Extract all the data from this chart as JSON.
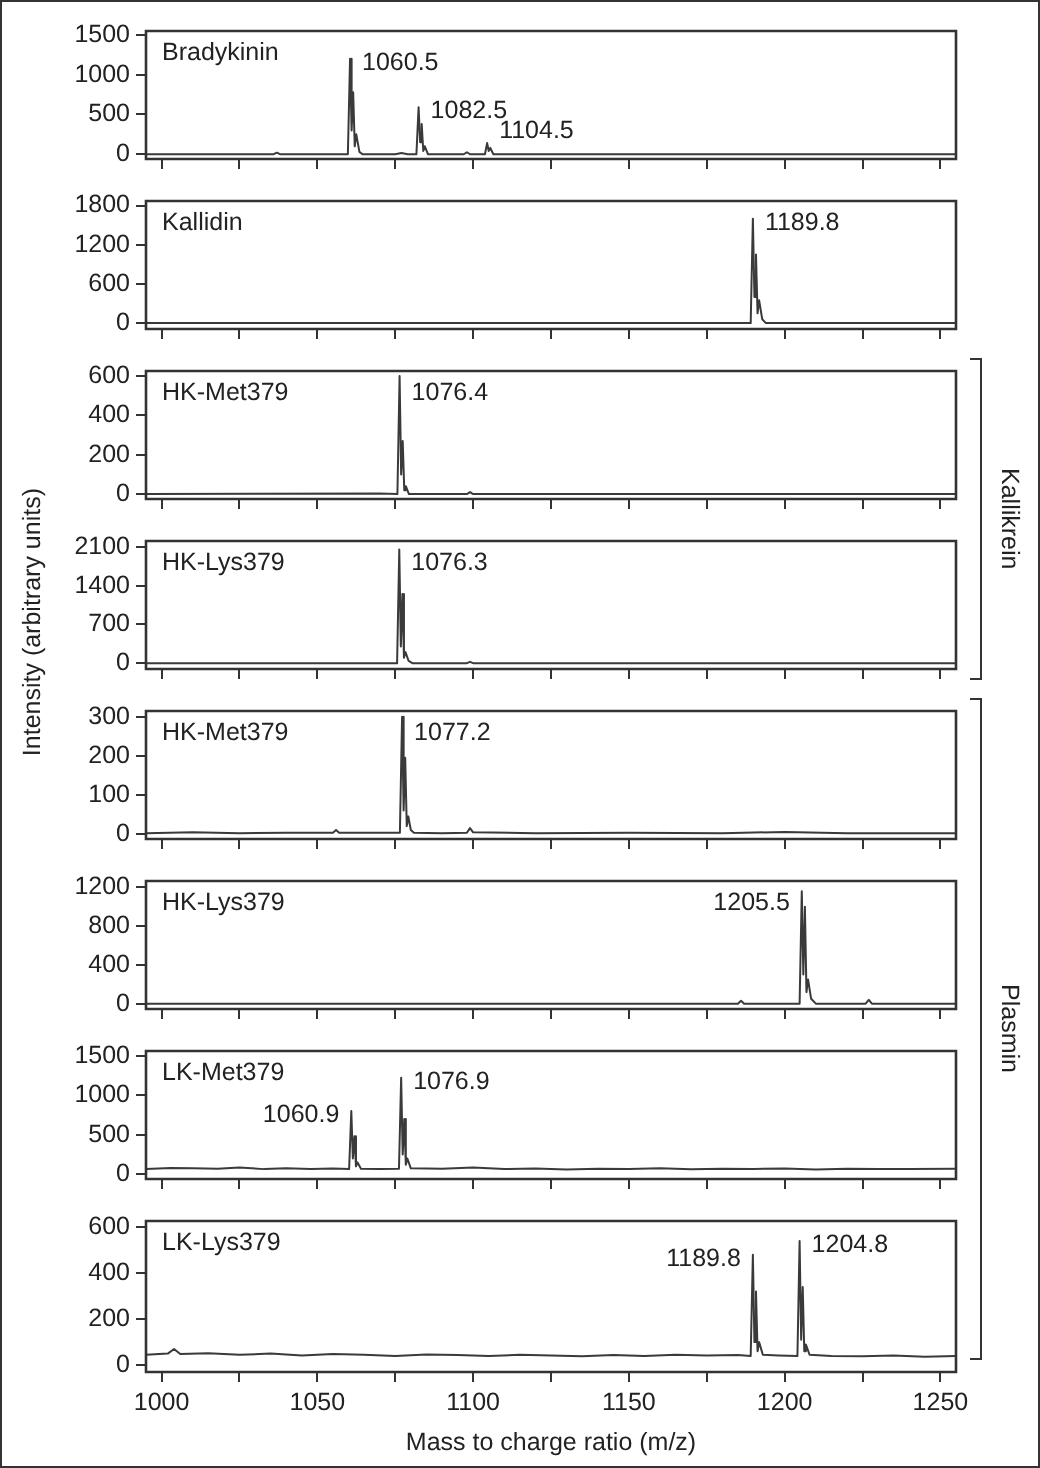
{
  "chart_data": [
    {
      "type": "line",
      "title": "Bradykinin",
      "x": [
        995,
        1020,
        1036,
        1037,
        1038,
        1059.8,
        1060.5,
        1061.0,
        1061.5,
        1062.0,
        1062.5,
        1063.5,
        1064.5,
        1075,
        1077,
        1079,
        1081.8,
        1082.5,
        1083.0,
        1083.5,
        1084.0,
        1084.5,
        1085.5,
        1097,
        1098,
        1099,
        1103.8,
        1104.5,
        1105.0,
        1105.5,
        1106.5,
        1130,
        1180,
        1255
      ],
      "values": [
        0,
        0,
        0,
        20,
        0,
        0,
        1200,
        300,
        780,
        100,
        250,
        30,
        0,
        0,
        15,
        0,
        0,
        590,
        150,
        380,
        40,
        100,
        0,
        0,
        25,
        0,
        0,
        140,
        40,
        80,
        0,
        0,
        0,
        0
      ],
      "color": "#3a3a3a",
      "xlim": [
        995,
        1255
      ],
      "xticks": [
        1000,
        {
          "value": 1025,
          "label": null
        },
        1050,
        {
          "value": 1075,
          "label": null
        },
        1100,
        {
          "value": 1125,
          "label": null
        },
        1150,
        {
          "value": 1175,
          "label": null
        },
        1200,
        {
          "value": 1225,
          "label": null
        },
        1250
      ],
      "ylim": [
        -60,
        1550
      ],
      "yticks": [
        0,
        500,
        1000,
        1500
      ],
      "tick_labels": "y",
      "annotations": [
        {
          "text": "1060.5",
          "x": 1060.5,
          "y": 1200
        },
        {
          "text": "1082.5",
          "x": 1082.5,
          "y": 590
        },
        {
          "text": "1104.5",
          "x": 1104.5,
          "y": 140
        }
      ]
    },
    {
      "type": "line",
      "title": "Kallidin",
      "x": [
        995,
        1100,
        1189.1,
        1189.8,
        1190.3,
        1190.8,
        1191.3,
        1191.8,
        1192.8,
        1194,
        1255
      ],
      "values": [
        0,
        0,
        0,
        1600,
        400,
        1050,
        150,
        350,
        60,
        0,
        0
      ],
      "color": "#3a3a3a",
      "xlim": [
        995,
        1255
      ],
      "xticks": [
        1000,
        {
          "value": 1025,
          "label": null
        },
        1050,
        {
          "value": 1075,
          "label": null
        },
        1100,
        {
          "value": 1125,
          "label": null
        },
        1150,
        {
          "value": 1175,
          "label": null
        },
        1200,
        {
          "value": 1225,
          "label": null
        },
        1250
      ],
      "ylim": [
        -90,
        1870
      ],
      "yticks": [
        0,
        600,
        1200,
        1800
      ],
      "tick_labels": "y",
      "annotations": [
        {
          "text": "1189.8",
          "x": 1189.8,
          "y": 1600
        }
      ]
    },
    {
      "type": "line",
      "title": "HK-Met379",
      "x": [
        995,
        1070,
        1075.7,
        1076.4,
        1076.9,
        1077.4,
        1077.9,
        1078.4,
        1079.4,
        1098,
        1099,
        1100,
        1255
      ],
      "values": [
        0,
        3,
        0,
        600,
        100,
        270,
        20,
        40,
        0,
        0,
        10,
        0,
        0
      ],
      "color": "#3a3a3a",
      "xlim": [
        995,
        1255
      ],
      "xticks": [
        1000,
        {
          "value": 1025,
          "label": null
        },
        1050,
        {
          "value": 1075,
          "label": null
        },
        1100,
        {
          "value": 1125,
          "label": null
        },
        1150,
        {
          "value": 1175,
          "label": null
        },
        1200,
        {
          "value": 1225,
          "label": null
        },
        1250
      ],
      "ylim": [
        -25,
        625
      ],
      "yticks": [
        0,
        200,
        400,
        600
      ],
      "tick_labels": "y",
      "annotations": [
        {
          "text": "1076.4",
          "x": 1076.4,
          "y": 600
        },
        "Kallikrein"
      ]
    },
    {
      "type": "line",
      "title": "HK-Lys379",
      "x": [
        995,
        1075.6,
        1076.3,
        1076.8,
        1077.3,
        1077.8,
        1078.3,
        1079.3,
        1080.5,
        1098,
        1099,
        1100,
        1255
      ],
      "values": [
        0,
        0,
        2050,
        300,
        1250,
        100,
        200,
        40,
        0,
        0,
        25,
        0,
        0
      ],
      "color": "#3a3a3a",
      "xlim": [
        995,
        1255
      ],
      "xticks": [
        1000,
        {
          "value": 1025,
          "label": null
        },
        1050,
        {
          "value": 1075,
          "label": null
        },
        1100,
        {
          "value": 1125,
          "label": null
        },
        1150,
        {
          "value": 1175,
          "label": null
        },
        1200,
        {
          "value": 1225,
          "label": null
        },
        1250
      ],
      "ylim": [
        -105,
        2205
      ],
      "yticks": [
        0,
        700,
        1400,
        2100
      ],
      "tick_labels": "y",
      "annotations": [
        {
          "text": "1076.3",
          "x": 1076.3,
          "y": 2050
        }
      ]
    },
    {
      "type": "line",
      "title": "HK-Met379",
      "ylabel": "Intensity (arbitrary units)",
      "x": [
        995,
        1010,
        1025,
        1040,
        1055,
        1056,
        1057,
        1070,
        1076.5,
        1077.2,
        1077.7,
        1078.2,
        1078.7,
        1079.2,
        1080,
        1081,
        1090,
        1098,
        1099,
        1100,
        1120,
        1150,
        1180,
        1200,
        1220,
        1255
      ],
      "values": [
        2,
        4,
        2,
        3,
        3,
        10,
        3,
        3,
        3,
        300,
        60,
        195,
        20,
        45,
        10,
        3,
        2,
        3,
        15,
        4,
        2,
        3,
        2,
        5,
        2,
        2
      ],
      "color": "#3a3a3a",
      "xlim": [
        995,
        1255
      ],
      "xticks": [
        1000,
        {
          "value": 1025,
          "label": null
        },
        1050,
        {
          "value": 1075,
          "label": null
        },
        1100,
        {
          "value": 1125,
          "label": null
        },
        1150,
        {
          "value": 1175,
          "label": null
        },
        1200,
        {
          "value": 1225,
          "label": null
        },
        1250
      ],
      "ylim": [
        -13,
        315
      ],
      "yticks": [
        0,
        100,
        200,
        300
      ],
      "tick_labels": "y",
      "annotations": [
        {
          "text": "1077.2",
          "x": 1077.2,
          "y": 300
        },
        "Plasmin"
      ]
    },
    {
      "type": "line",
      "title": "HK-Lys379",
      "x": [
        995,
        1050,
        1100,
        1185,
        1186,
        1187,
        1204.8,
        1205.5,
        1206.0,
        1206.5,
        1207.0,
        1207.5,
        1208.5,
        1210,
        1226,
        1227,
        1228,
        1255
      ],
      "values": [
        0,
        0,
        0,
        0,
        30,
        0,
        0,
        1160,
        300,
        1000,
        120,
        250,
        50,
        0,
        0,
        40,
        0,
        0
      ],
      "color": "#3a3a3a",
      "xlim": [
        995,
        1255
      ],
      "xticks": [
        1000,
        {
          "value": 1025,
          "label": null
        },
        1050,
        {
          "value": 1075,
          "label": null
        },
        1100,
        {
          "value": 1125,
          "label": null
        },
        1150,
        {
          "value": 1175,
          "label": null
        },
        1200,
        {
          "value": 1225,
          "label": null
        },
        1250
      ],
      "ylim": [
        -55,
        1265
      ],
      "yticks": [
        0,
        400,
        800,
        1200
      ],
      "tick_labels": "y",
      "annotations": [
        {
          "text": "1205.5",
          "x": 1205.5,
          "y": 1160
        }
      ]
    },
    {
      "type": "line",
      "title": "LK-Met379",
      "x": [
        995,
        1003,
        1010,
        1018,
        1025,
        1033,
        1040,
        1048,
        1055,
        1060.2,
        1060.9,
        1061.4,
        1061.9,
        1062.4,
        1062.9,
        1064,
        1070,
        1076.2,
        1076.9,
        1077.4,
        1077.9,
        1078.4,
        1078.9,
        1080,
        1090,
        1100,
        1110,
        1120,
        1130,
        1140,
        1150,
        1160,
        1170,
        1180,
        1190,
        1200,
        1210,
        1220,
        1230,
        1240,
        1255
      ],
      "values": [
        65,
        80,
        75,
        70,
        85,
        65,
        75,
        68,
        72,
        65,
        800,
        200,
        480,
        100,
        150,
        70,
        65,
        70,
        1220,
        250,
        700,
        120,
        200,
        75,
        70,
        85,
        65,
        72,
        60,
        70,
        65,
        75,
        62,
        70,
        68,
        72,
        60,
        70,
        65,
        68,
        70
      ],
      "color": "#3a3a3a",
      "xlim": [
        995,
        1255
      ],
      "xticks": [
        1000,
        {
          "value": 1025,
          "label": null
        },
        1050,
        {
          "value": 1075,
          "label": null
        },
        1100,
        {
          "value": 1125,
          "label": null
        },
        1150,
        {
          "value": 1175,
          "label": null
        },
        1200,
        {
          "value": 1225,
          "label": null
        },
        1250
      ],
      "ylim": [
        -60,
        1560
      ],
      "yticks": [
        0,
        500,
        1000,
        1500
      ],
      "tick_labels": "y",
      "annotations": [
        {
          "text": "1060.9",
          "x": 1060.9,
          "y": 800
        },
        {
          "text": "1076.9",
          "x": 1076.9,
          "y": 1220
        }
      ]
    },
    {
      "type": "line",
      "title": "LK-Lys379",
      "xlabel": "Mass to charge ratio (m/z)",
      "x": [
        995,
        1002,
        1004,
        1006,
        1015,
        1025,
        1035,
        1045,
        1055,
        1065,
        1075,
        1085,
        1095,
        1105,
        1115,
        1125,
        1135,
        1145,
        1155,
        1165,
        1175,
        1185,
        1189.1,
        1189.8,
        1190.3,
        1190.8,
        1191.3,
        1191.8,
        1193,
        1198,
        1204.1,
        1204.8,
        1205.3,
        1205.8,
        1206.3,
        1206.8,
        1208,
        1215,
        1225,
        1235,
        1245,
        1255
      ],
      "values": [
        45,
        50,
        70,
        48,
        52,
        45,
        50,
        42,
        48,
        45,
        40,
        46,
        44,
        40,
        45,
        42,
        38,
        44,
        40,
        45,
        42,
        44,
        40,
        480,
        100,
        320,
        60,
        100,
        45,
        42,
        40,
        540,
        110,
        340,
        60,
        90,
        45,
        40,
        38,
        42,
        36,
        40
      ],
      "color": "#3a3a3a",
      "xlim": [
        995,
        1255
      ],
      "xticks": [
        1000,
        {
          "value": 1025,
          "label": null
        },
        1050,
        {
          "value": 1075,
          "label": null
        },
        1100,
        {
          "value": 1125,
          "label": null
        },
        1150,
        {
          "value": 1175,
          "label": null
        },
        1200,
        {
          "value": 1225,
          "label": null
        },
        1250
      ],
      "ylim": [
        -30,
        627
      ],
      "yticks": [
        0,
        200,
        400,
        600
      ],
      "annotations": [
        {
          "text": "1189.8",
          "x": 1189.8,
          "y": 480
        },
        {
          "text": "1204.8",
          "x": 1204.8,
          "y": 540
        }
      ]
    }
  ]
}
